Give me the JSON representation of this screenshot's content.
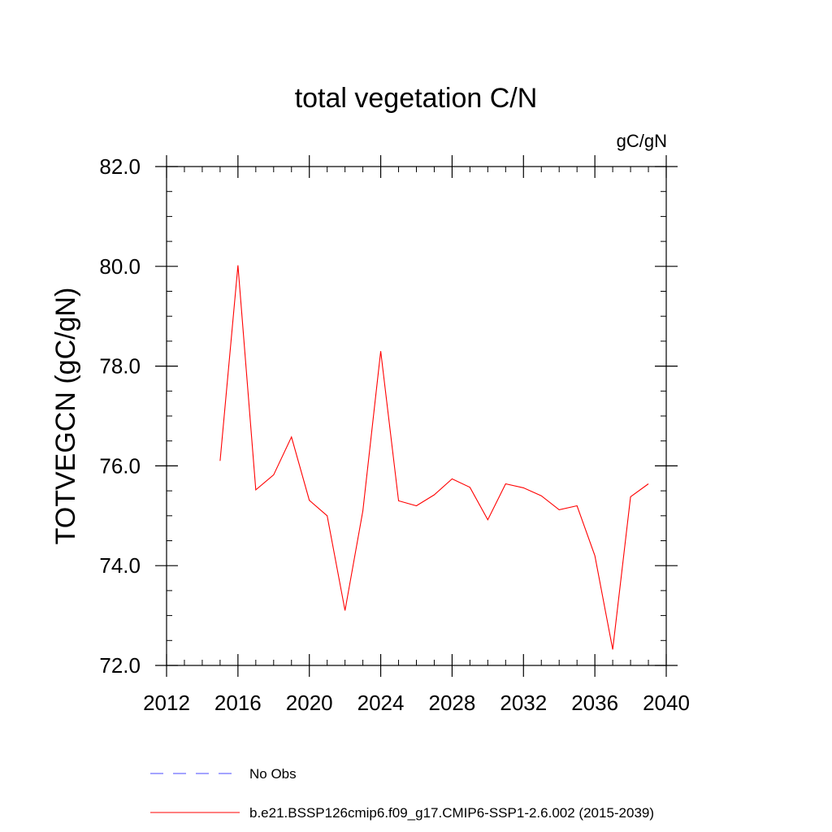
{
  "chart_data": {
    "type": "line",
    "title": "total vegetation C/N",
    "units": "gC/gN",
    "xlabel": "",
    "ylabel": "TOTVEGCN  (gC/gN)",
    "xlim": [
      2012,
      2040
    ],
    "ylim": [
      72.0,
      82.0
    ],
    "xticks": [
      2012,
      2016,
      2020,
      2024,
      2028,
      2032,
      2036,
      2040
    ],
    "xtick_labels": [
      "2012",
      "2016",
      "2020",
      "2024",
      "2028",
      "2032",
      "2036",
      "2040"
    ],
    "yticks": [
      72.0,
      74.0,
      76.0,
      78.0,
      80.0,
      82.0
    ],
    "ytick_labels": [
      "72.0",
      "74.0",
      "76.0",
      "78.0",
      "80.0",
      "82.0"
    ],
    "series": [
      {
        "name": "b.e21.BSSP126cmip6.f09_g17.CMIP6-SSP1-2.6.002 (2015-2039)",
        "color": "#ff0000",
        "style": "solid",
        "x": [
          2015,
          2016,
          2017,
          2018,
          2019,
          2020,
          2021,
          2022,
          2023,
          2024,
          2025,
          2026,
          2027,
          2028,
          2029,
          2030,
          2031,
          2032,
          2033,
          2034,
          2035,
          2036,
          2037,
          2038,
          2039
        ],
        "values": [
          76.1,
          80.02,
          75.52,
          75.82,
          76.58,
          75.31,
          75.0,
          73.1,
          75.1,
          78.3,
          75.3,
          75.2,
          75.42,
          75.74,
          75.57,
          74.92,
          75.64,
          75.56,
          75.4,
          75.12,
          75.2,
          74.2,
          72.32,
          75.38,
          75.64
        ]
      }
    ],
    "legend": [
      {
        "label": "No Obs",
        "color": "#4a4aff",
        "style": "dashed"
      },
      {
        "label": "b.e21.BSSP126cmip6.f09_g17.CMIP6-SSP1-2.6.002 (2015-2039)",
        "color": "#ff0000",
        "style": "solid"
      }
    ]
  }
}
